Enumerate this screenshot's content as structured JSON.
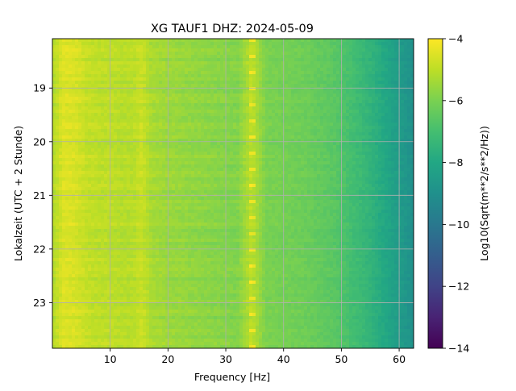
{
  "chart_data": {
    "type": "heatmap",
    "title": "XG TAUF1  DHZ: 2024-05-09",
    "xlabel": "Frequency [Hz]",
    "ylabel": "Lokalzeit (UTC + 2 Stunde)",
    "xlim": [
      0,
      62.5
    ],
    "ylim": [
      18.08,
      23.85
    ],
    "y_inverted": true,
    "x_ticks": [
      10,
      20,
      30,
      40,
      50,
      60
    ],
    "x_tick_labels": [
      "10",
      "20",
      "30",
      "40",
      "50",
      "60"
    ],
    "y_ticks": [
      19,
      20,
      21,
      22,
      23
    ],
    "y_tick_labels": [
      "19",
      "20",
      "21",
      "22",
      "23"
    ],
    "grid": true,
    "colorbar": {
      "label": "Log10(Sqrt(m**2/s**2/Hz))",
      "colormap": "viridis",
      "range": [
        -14,
        -4
      ],
      "ticks": [
        -4,
        -6,
        -8,
        -10,
        -12,
        -14
      ],
      "tick_labels": [
        "−4",
        "−6",
        "−8",
        "−10",
        "−12",
        "−14"
      ]
    },
    "spectrum_profile": {
      "frequency_hz": [
        0,
        2,
        4,
        6,
        8,
        10,
        12,
        14,
        15.5,
        17,
        20,
        23,
        26,
        29,
        32,
        34.5,
        37,
        40,
        43,
        46,
        49,
        51,
        53,
        55,
        57,
        59,
        61,
        62.5
      ],
      "level": [
        -5.2,
        -4.5,
        -4.6,
        -4.9,
        -5.0,
        -5.0,
        -5.1,
        -5.1,
        -4.8,
        -5.3,
        -5.5,
        -5.6,
        -5.7,
        -5.8,
        -5.9,
        -5.0,
        -6.0,
        -6.1,
        -6.2,
        -6.4,
        -6.6,
        -6.9,
        -7.2,
        -7.5,
        -7.9,
        -8.3,
        -8.7,
        -9.0
      ]
    }
  }
}
